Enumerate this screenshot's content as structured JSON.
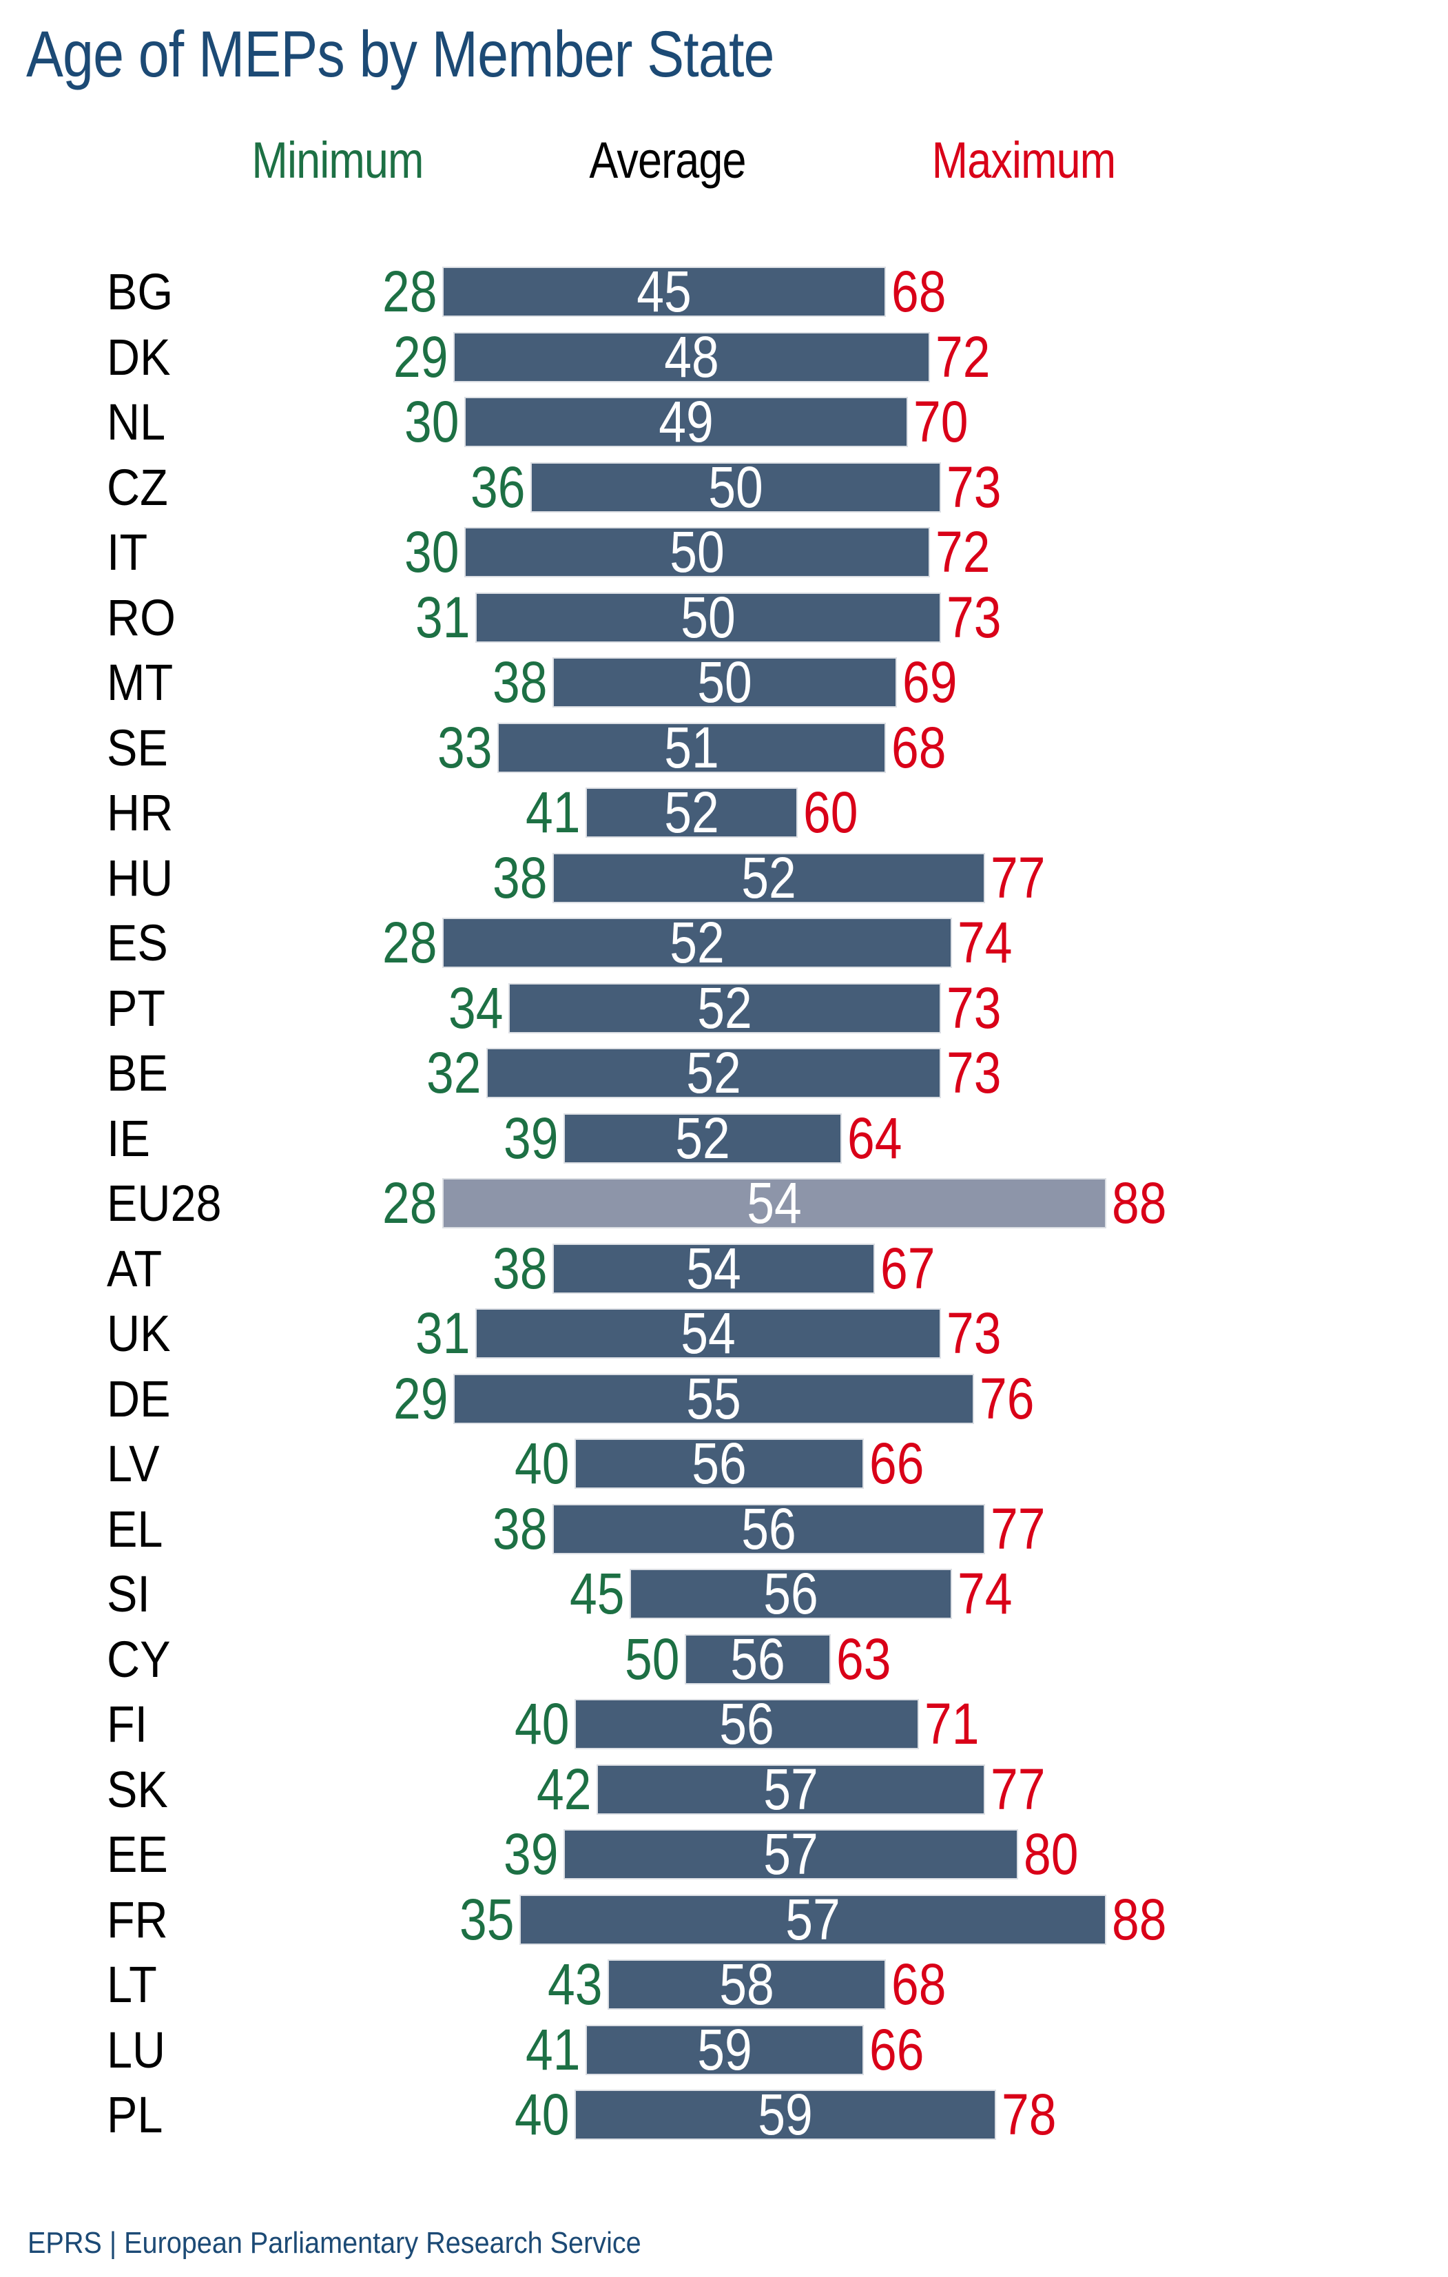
{
  "title": "Age of MEPs by Member State",
  "footer": "EPRS | European Parliamentary Research Service",
  "chart_data": {
    "type": "bar",
    "subtype": "horizontal-range-bars",
    "title": "Age of MEPs by Member State",
    "xlabel": "",
    "ylabel": "",
    "xlim": [
      28,
      88
    ],
    "grid": false,
    "legend_position": "top",
    "legend": [
      {
        "label": "Minimum",
        "color": "#1d7044"
      },
      {
        "label": "Average",
        "color": "#000000"
      },
      {
        "label": "Maximum",
        "color": "#d90018"
      }
    ],
    "categories": [
      "BG",
      "DK",
      "NL",
      "CZ",
      "IT",
      "RO",
      "MT",
      "SE",
      "HR",
      "HU",
      "ES",
      "PT",
      "BE",
      "IE",
      "EU28",
      "AT",
      "UK",
      "DE",
      "LV",
      "EL",
      "SI",
      "CY",
      "FI",
      "SK",
      "EE",
      "FR",
      "LT",
      "LU",
      "PL"
    ],
    "series": [
      {
        "name": "Minimum",
        "values": [
          28,
          29,
          30,
          36,
          30,
          31,
          38,
          33,
          41,
          38,
          28,
          34,
          32,
          39,
          28,
          38,
          31,
          29,
          40,
          38,
          45,
          50,
          40,
          42,
          39,
          35,
          43,
          41,
          40
        ]
      },
      {
        "name": "Average",
        "values": [
          45,
          48,
          49,
          50,
          50,
          50,
          50,
          51,
          52,
          52,
          52,
          52,
          52,
          52,
          54,
          54,
          54,
          55,
          56,
          56,
          56,
          56,
          56,
          57,
          57,
          57,
          58,
          59,
          59
        ]
      },
      {
        "name": "Maximum",
        "values": [
          68,
          72,
          70,
          73,
          72,
          73,
          69,
          68,
          60,
          77,
          74,
          73,
          73,
          64,
          88,
          67,
          73,
          76,
          66,
          77,
          74,
          63,
          71,
          77,
          80,
          88,
          68,
          66,
          78
        ]
      }
    ],
    "highlight_category": "EU28",
    "colors": {
      "bar": "#455d78",
      "bar_highlight": "#8d95a9",
      "minimum": "#1d7044",
      "maximum": "#d90018",
      "average_text": "#ffffff",
      "title": "#1c4a75",
      "category_text": "#000000"
    }
  }
}
